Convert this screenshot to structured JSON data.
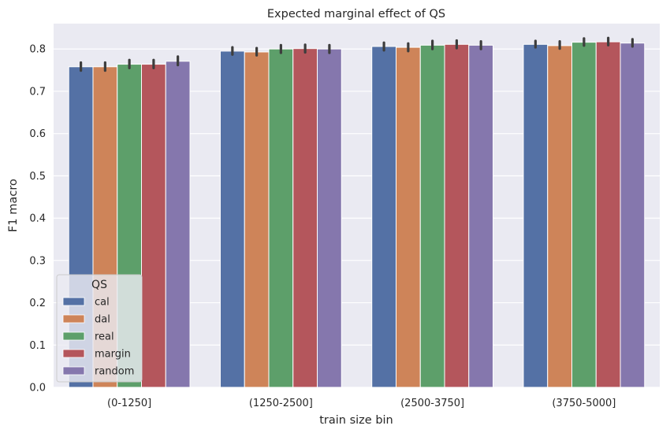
{
  "chart_data": {
    "type": "bar",
    "title": "Expected marginal effect of QS",
    "xlabel": "train size bin",
    "ylabel": "F1 macro",
    "categories": [
      "(0-1250]",
      "(1250-2500]",
      "(2500-3750]",
      "(3750-5000]"
    ],
    "ylim": [
      0,
      0.86
    ],
    "yticks": [
      "0.0",
      "0.1",
      "0.2",
      "0.3",
      "0.4",
      "0.5",
      "0.6",
      "0.7",
      "0.8"
    ],
    "grid": true,
    "legend": {
      "title": "QS",
      "placement": "lower-left"
    },
    "series": [
      {
        "name": "cal",
        "color": "#5471a5",
        "values": [
          0.758,
          0.795,
          0.806,
          0.811
        ],
        "ci": [
          [
            0.749,
            0.768
          ],
          [
            0.787,
            0.804
          ],
          [
            0.797,
            0.815
          ],
          [
            0.804,
            0.819
          ]
        ]
      },
      {
        "name": "dal",
        "color": "#ce8459",
        "values": [
          0.758,
          0.793,
          0.804,
          0.808
        ],
        "ci": [
          [
            0.749,
            0.768
          ],
          [
            0.785,
            0.802
          ],
          [
            0.795,
            0.813
          ],
          [
            0.801,
            0.818
          ]
        ]
      },
      {
        "name": "real",
        "color": "#5d9f6a",
        "values": [
          0.764,
          0.8,
          0.809,
          0.816
        ],
        "ci": [
          [
            0.755,
            0.774
          ],
          [
            0.791,
            0.809
          ],
          [
            0.8,
            0.819
          ],
          [
            0.808,
            0.825
          ]
        ]
      },
      {
        "name": "margin",
        "color": "#b4565c",
        "values": [
          0.764,
          0.801,
          0.811,
          0.817
        ],
        "ci": [
          [
            0.755,
            0.774
          ],
          [
            0.792,
            0.81
          ],
          [
            0.802,
            0.82
          ],
          [
            0.809,
            0.826
          ]
        ]
      },
      {
        "name": "random",
        "color": "#8577ad",
        "values": [
          0.771,
          0.8,
          0.809,
          0.814
        ],
        "ci": [
          [
            0.762,
            0.782
          ],
          [
            0.791,
            0.809
          ],
          [
            0.8,
            0.818
          ],
          [
            0.806,
            0.823
          ]
        ]
      }
    ]
  }
}
